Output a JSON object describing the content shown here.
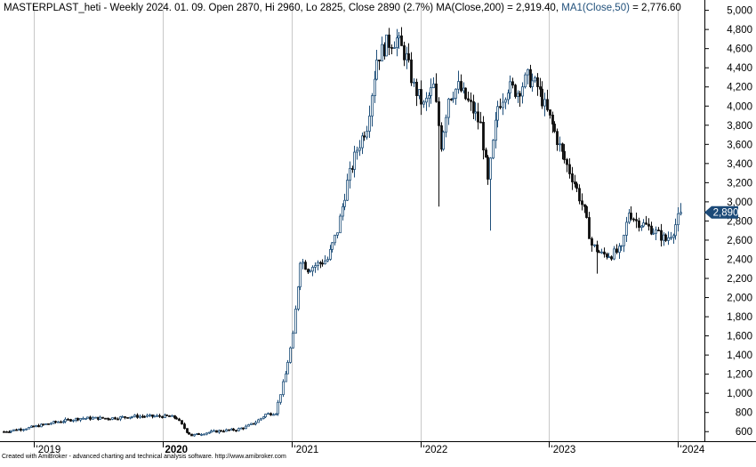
{
  "header": {
    "symbol_line": "MASTERPLAST_heti - Weekly 2024. 01. 09. Open 2870, Hi 2960, Lo 2825, Close 2890 (2.7%) MA(Close,200) = 2,919.40,",
    "ma1_label": "MA1(Close,50)",
    "ma1_value": " = 2,776.60"
  },
  "footer": {
    "text": "Created with AmiBroker - advanced charting and technical analysis software. http://www.amibroker.com"
  },
  "colors": {
    "up": "#1f4f7a",
    "down": "#0d0d0d",
    "grid": "#c8c8c8",
    "axis": "#000000",
    "price_badge": "#1c4a78",
    "ma1_label": "#1f4f7a"
  },
  "chart_data": {
    "type": "candlestick",
    "period": "weekly",
    "title": "MASTERPLAST_heti - Weekly",
    "last_price_label": "2,890",
    "last_price": 2890,
    "ylim": [
      500,
      5080
    ],
    "y_ticks": [
      600,
      800,
      1000,
      1200,
      1400,
      1600,
      1800,
      2000,
      2200,
      2400,
      2600,
      2800,
      3000,
      3200,
      3400,
      3600,
      3800,
      4000,
      4200,
      4400,
      4600,
      4800,
      5000
    ],
    "y_tick_labels": [
      "600",
      "800",
      "1,000",
      "1,200",
      "1,400",
      "1,600",
      "1,800",
      "2,000",
      "2,200",
      "2,400",
      "2,600",
      "2,800",
      "3,000",
      "3,200",
      "3,400",
      "3,600",
      "3,800",
      "4,000",
      "4,200",
      "4,400",
      "4,600",
      "4,800",
      "5,000"
    ],
    "x_ticks": [
      {
        "label": "'2019",
        "x": "2019-01-01",
        "bold": false
      },
      {
        "label": "2020",
        "x": "2020-01-01",
        "bold": true
      },
      {
        "label": "'2021",
        "x": "2021-01-01",
        "bold": false
      },
      {
        "label": "'2022",
        "x": "2022-01-01",
        "bold": false
      },
      {
        "label": "'2023",
        "x": "2023-01-01",
        "bold": false
      },
      {
        "label": "'2024",
        "x": "2024-01-01",
        "bold": false
      }
    ],
    "x_range": [
      "2018-10-08",
      "2024-01-08"
    ],
    "price_path": [
      [
        "2018-10-08",
        600
      ],
      [
        "2018-12-17",
        640
      ],
      [
        "2019-03-04",
        700
      ],
      [
        "2019-05-13",
        740
      ],
      [
        "2019-08-05",
        740
      ],
      [
        "2019-10-14",
        760
      ],
      [
        "2019-12-23",
        760
      ],
      [
        "2020-01-20",
        760
      ],
      [
        "2020-02-10",
        740
      ],
      [
        "2020-03-09",
        600
      ],
      [
        "2020-03-23",
        560
      ],
      [
        "2020-05-04",
        590
      ],
      [
        "2020-06-15",
        610
      ],
      [
        "2020-07-27",
        620
      ],
      [
        "2020-08-24",
        650
      ],
      [
        "2020-09-21",
        700
      ],
      [
        "2020-10-19",
        780
      ],
      [
        "2020-11-16",
        800
      ],
      [
        "2020-12-14",
        1200
      ],
      [
        "2021-01-04",
        1600
      ],
      [
        "2021-01-25",
        2400
      ],
      [
        "2021-02-15",
        2300
      ],
      [
        "2021-03-15",
        2350
      ],
      [
        "2021-04-12",
        2400
      ],
      [
        "2021-05-10",
        2700
      ],
      [
        "2021-06-07",
        3200
      ],
      [
        "2021-07-05",
        3550
      ],
      [
        "2021-08-02",
        3800
      ],
      [
        "2021-08-30",
        4500
      ],
      [
        "2021-09-27",
        4650
      ],
      [
        "2021-10-25",
        4700
      ],
      [
        "2021-11-22",
        4500
      ],
      [
        "2021-12-13",
        4200
      ],
      [
        "2022-01-10",
        4000
      ],
      [
        "2022-02-07",
        4200
      ],
      [
        "2022-02-28",
        3600
      ],
      [
        "2022-03-21",
        4100
      ],
      [
        "2022-04-18",
        4200
      ],
      [
        "2022-05-23",
        4000
      ],
      [
        "2022-06-20",
        3800
      ],
      [
        "2022-07-11",
        3200
      ],
      [
        "2022-08-08",
        4000
      ],
      [
        "2022-09-05",
        4200
      ],
      [
        "2022-10-03",
        4150
      ],
      [
        "2022-10-31",
        4300
      ],
      [
        "2022-11-28",
        4200
      ],
      [
        "2023-01-09",
        3800
      ],
      [
        "2023-02-06",
        3500
      ],
      [
        "2023-03-13",
        3200
      ],
      [
        "2023-04-10",
        2900
      ],
      [
        "2023-05-01",
        2550
      ],
      [
        "2023-05-29",
        2450
      ],
      [
        "2023-06-26",
        2450
      ],
      [
        "2023-07-24",
        2500
      ],
      [
        "2023-08-14",
        2900
      ],
      [
        "2023-09-04",
        2800
      ],
      [
        "2023-10-02",
        2750
      ],
      [
        "2023-10-30",
        2680
      ],
      [
        "2023-11-27",
        2600
      ],
      [
        "2023-12-18",
        2700
      ],
      [
        "2024-01-08",
        2890
      ]
    ],
    "dips": [
      {
        "x": "2022-02-21",
        "low": 2950
      },
      {
        "x": "2022-07-18",
        "low": 2700
      },
      {
        "x": "2023-05-15",
        "low": 2250
      }
    ],
    "volatility": 0.04,
    "grid": true,
    "legend": "none"
  }
}
